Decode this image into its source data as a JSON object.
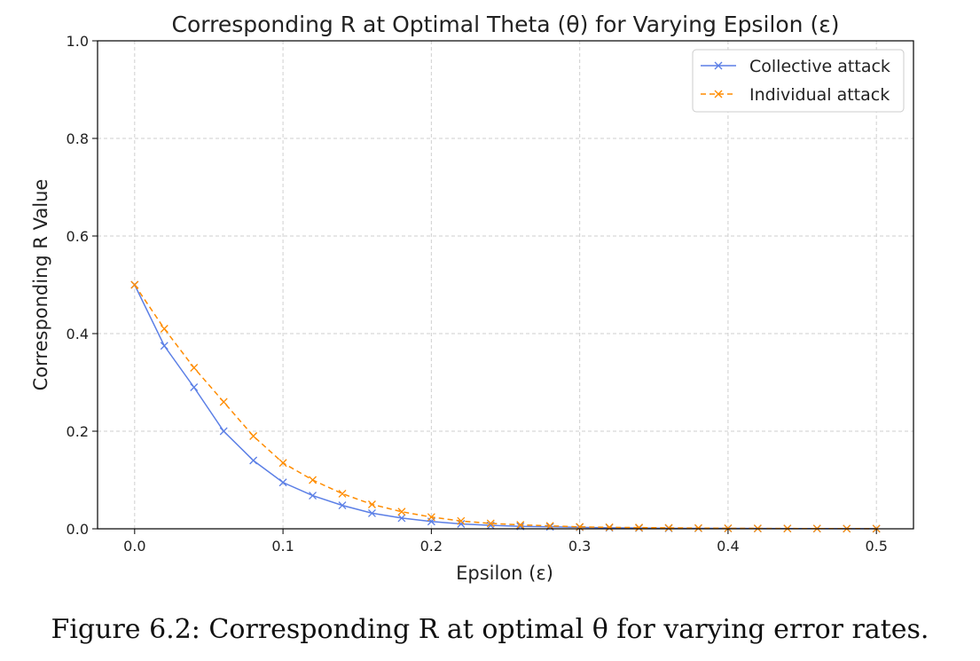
{
  "caption": "Figure 6.2: Corresponding R at optimal θ for varying error rates.",
  "colors": {
    "collective": "#5b7fe6",
    "individual": "#ff8c00",
    "grid": "#cfcfcf",
    "axes": "#000000"
  },
  "chart_data": {
    "type": "line",
    "title": "Corresponding R at Optimal Theta (θ) for Varying Epsilon (ε)",
    "xlabel": "Epsilon (ε)",
    "ylabel": "Corresponding R Value",
    "xlim": [
      -0.025,
      0.525
    ],
    "ylim": [
      0.0,
      1.0
    ],
    "xticks": [
      0.0,
      0.1,
      0.2,
      0.3,
      0.4,
      0.5
    ],
    "xtick_labels": [
      "0.0",
      "0.1",
      "0.2",
      "0.3",
      "0.4",
      "0.5"
    ],
    "yticks": [
      0.0,
      0.2,
      0.4,
      0.6,
      0.8,
      1.0
    ],
    "ytick_labels": [
      "0.0",
      "0.2",
      "0.4",
      "0.6",
      "0.8",
      "1.0"
    ],
    "grid": true,
    "legend_position": "top-right",
    "x": [
      0.0,
      0.02,
      0.04,
      0.06,
      0.08,
      0.1,
      0.12,
      0.14,
      0.16,
      0.18,
      0.2,
      0.22,
      0.24,
      0.26,
      0.28,
      0.3,
      0.32,
      0.34,
      0.36,
      0.38,
      0.4,
      0.42,
      0.44,
      0.46,
      0.48,
      0.5
    ],
    "series": [
      {
        "name": "Collective attack",
        "marker": "x",
        "linestyle": "solid",
        "values": [
          0.5,
          0.375,
          0.29,
          0.2,
          0.14,
          0.095,
          0.068,
          0.048,
          0.032,
          0.022,
          0.015,
          0.01,
          0.007,
          0.005,
          0.004,
          0.003,
          0.002,
          0.0015,
          0.001,
          0.001,
          0.0008,
          0.0006,
          0.0005,
          0.0004,
          0.0003,
          0.0002
        ]
      },
      {
        "name": "Individual attack",
        "marker": "x",
        "linestyle": "dashed",
        "values": [
          0.5,
          0.41,
          0.33,
          0.26,
          0.19,
          0.135,
          0.1,
          0.072,
          0.05,
          0.035,
          0.024,
          0.016,
          0.011,
          0.008,
          0.006,
          0.004,
          0.003,
          0.0025,
          0.002,
          0.0015,
          0.001,
          0.0008,
          0.0006,
          0.0005,
          0.0004,
          0.0003
        ]
      }
    ]
  }
}
